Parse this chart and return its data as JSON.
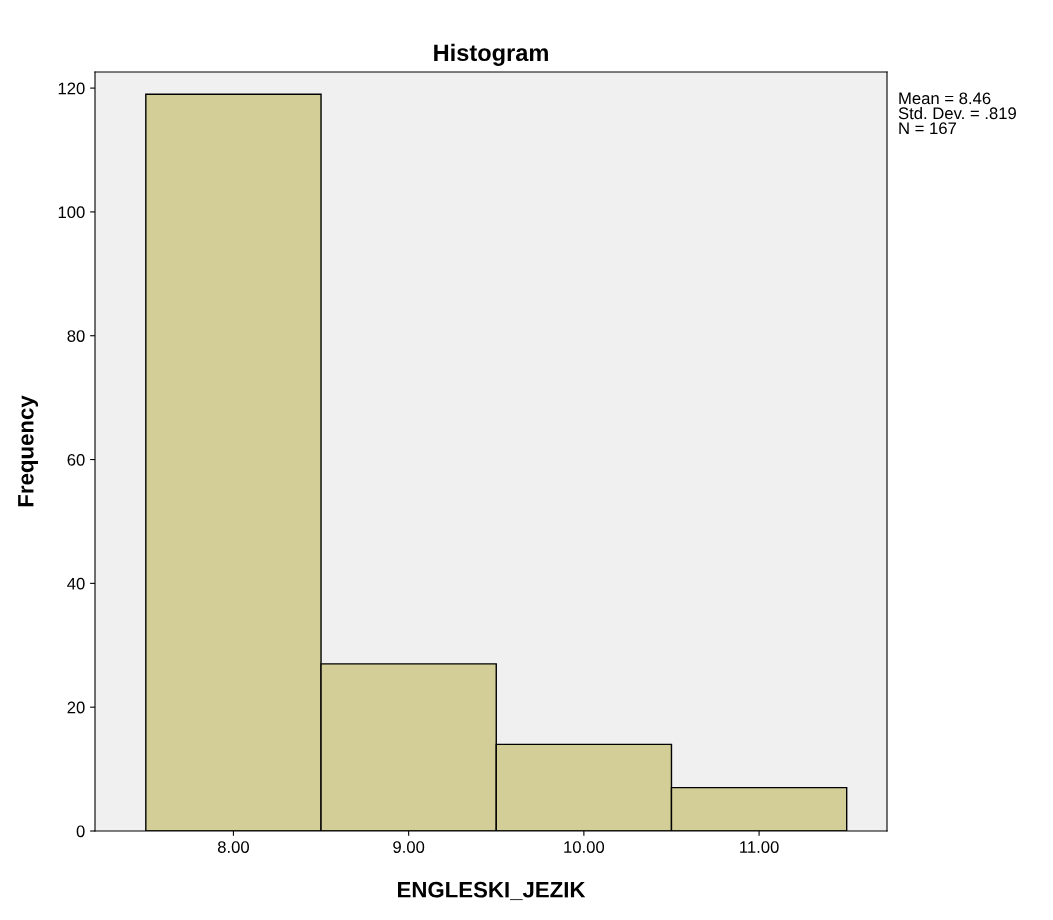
{
  "chart_data": {
    "type": "histogram",
    "title": "Histogram",
    "xlabel": "ENGLESKI_JEZIK",
    "ylabel": "Frequency",
    "bins": [
      7.5,
      8.5,
      9.5,
      10.5,
      11.5
    ],
    "values": [
      119,
      27,
      14,
      7
    ],
    "color": "#d3ce97",
    "xlim": [
      7.21,
      11.73
    ],
    "ylim": [
      0,
      122.6
    ],
    "xticks": [
      {
        "value": 8,
        "label": "8.00"
      },
      {
        "value": 9,
        "label": "9.00"
      },
      {
        "value": 10,
        "label": "10.00"
      },
      {
        "value": 11,
        "label": "11.00"
      }
    ],
    "yticks": [
      0,
      20,
      40,
      60,
      80,
      100,
      120
    ],
    "annotations": [
      "Mean = 8.46\nStd. Dev. = .819\nN = 167"
    ],
    "grid": false
  }
}
